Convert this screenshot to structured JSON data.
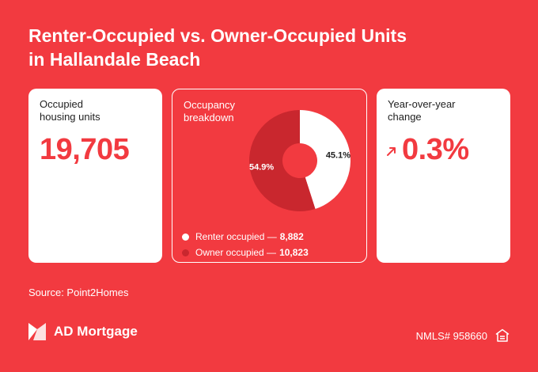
{
  "title": {
    "line1": "Renter-Occupied vs. Owner-Occupied Units",
    "line2": "in Hallandale Beach"
  },
  "cards": {
    "occupied": {
      "label": "Occupied\nhousing units",
      "value": "19,705"
    },
    "breakdown": {
      "label": "Occupancy\nbreakdown"
    },
    "yoy": {
      "label": "Year-over-year\nchange",
      "value": "0.3%",
      "icon": "arrow-up-right-icon"
    }
  },
  "chart_data": {
    "type": "pie",
    "variant": "donut",
    "slices": [
      {
        "name": "Renter occupied",
        "value": 8882,
        "value_label": "8,882",
        "percent": 45.1,
        "percent_label": "45.1%",
        "color": "#ffffff"
      },
      {
        "name": "Owner occupied",
        "value": 10823,
        "value_label": "10,823",
        "percent": 54.9,
        "percent_label": "54.9%",
        "color": "#c9272e"
      }
    ],
    "legend": "bottom"
  },
  "source": "Source: Point2Homes",
  "brand": {
    "name": "AD Mortgage",
    "icon": "ad-mortgage-logo"
  },
  "nmls": "NMLS# 958660",
  "footer_icon": "equal-housing-icon",
  "colors": {
    "background": "#f23a40",
    "accent": "#f23a40",
    "owner": "#c9272e",
    "renter": "#ffffff"
  }
}
